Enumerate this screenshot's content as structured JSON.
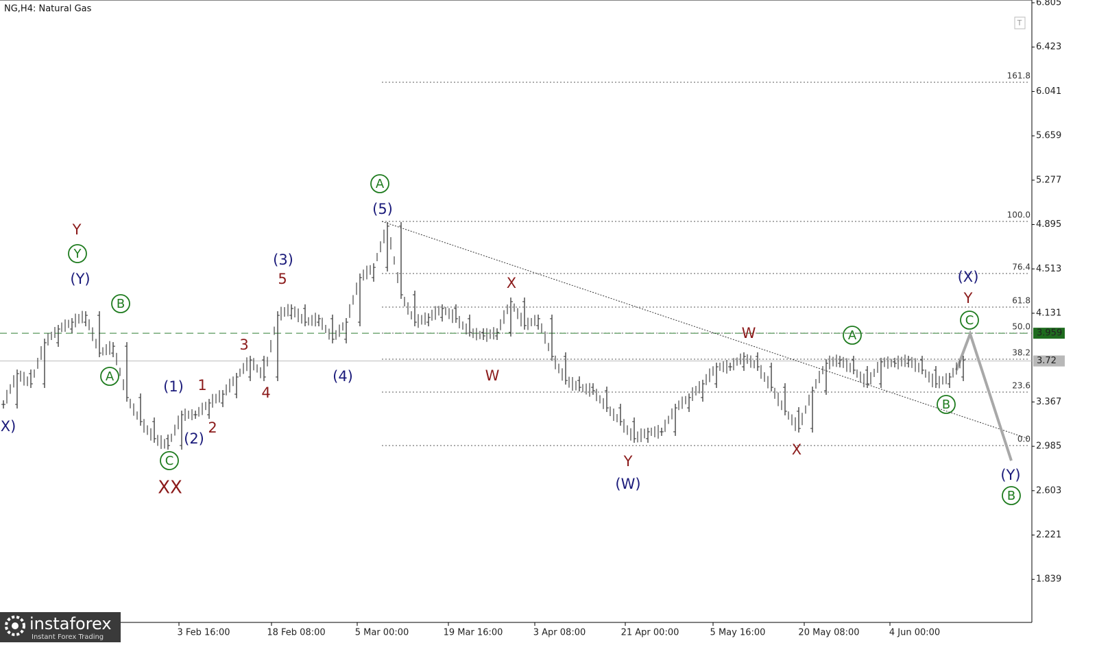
{
  "symbol": "NG,H4:  Natural Gas",
  "price_axis": {
    "ticks": [
      6.805,
      6.423,
      6.041,
      5.659,
      5.277,
      4.895,
      4.513,
      4.131,
      3.367,
      2.985,
      2.603,
      2.221,
      1.839
    ]
  },
  "time_axis": {
    "labels": [
      "3 Feb 16:00",
      "18 Feb 08:00",
      "5 Mar 00:00",
      "19 Mar 16:00",
      "3 Apr 08:00",
      "21 Apr 00:00",
      "5 May 16:00",
      "20 May 08:00",
      "4 Jun 00:00"
    ]
  },
  "badges": [
    {
      "value": 3.959,
      "color": "#1e6b1e"
    },
    {
      "value": 3.72,
      "color": "#b8b8b8"
    }
  ],
  "fib_levels": [
    "161.8",
    "100.0",
    "76.4",
    "61.8",
    "50.0",
    "38.2",
    "23.6",
    "0.0"
  ],
  "price_trace": [
    3.346,
    3.611,
    3.523,
    3.877,
    3.995,
    4.054,
    4.113,
    3.788,
    3.847,
    3.405,
    3.198,
    3.051,
    2.992,
    3.257,
    3.257,
    3.358,
    3.434,
    3.582,
    3.729,
    3.582,
    4.113,
    4.172,
    4.054,
    4.084,
    3.907,
    4.054,
    4.438,
    4.526,
    4.881,
    4.29,
    4.054,
    4.095,
    4.172,
    4.084,
    3.966,
    3.936,
    3.966,
    4.231,
    4.025,
    4.084,
    3.759,
    3.552,
    3.493,
    3.464,
    3.316,
    3.198,
    3.051,
    3.11,
    3.11,
    3.316,
    3.405,
    3.523,
    3.67,
    3.67,
    3.759,
    3.67,
    3.493,
    3.287,
    3.139,
    3.464,
    3.7,
    3.729,
    3.641,
    3.523,
    3.712,
    3.7,
    3.729,
    3.641,
    3.523,
    3.582,
    3.729
  ],
  "wave_labels": [
    {
      "text": "X)",
      "color": "#1a1a7a"
    },
    {
      "text": "Y",
      "color": "#8b1a1a"
    },
    {
      "text": "Y",
      "color": "#1e7b1e",
      "circled": true
    },
    {
      "text": "(Y)",
      "color": "#1a1a7a"
    },
    {
      "text": "B",
      "color": "#1e7b1e",
      "circled": true
    },
    {
      "text": "A",
      "color": "#1e7b1e",
      "circled": true
    },
    {
      "text": "C",
      "color": "#1e7b1e",
      "circled": true
    },
    {
      "text": "XX",
      "color": "#8b1a1a"
    },
    {
      "text": "(1)",
      "color": "#1a1a7a"
    },
    {
      "text": "(2)",
      "color": "#1a1a7a"
    },
    {
      "text": "1",
      "color": "#8b1a1a"
    },
    {
      "text": "2",
      "color": "#8b1a1a"
    },
    {
      "text": "3",
      "color": "#8b1a1a"
    },
    {
      "text": "4",
      "color": "#8b1a1a"
    },
    {
      "text": "5",
      "color": "#8b1a1a"
    },
    {
      "text": "(3)",
      "color": "#1a1a7a"
    },
    {
      "text": "(4)",
      "color": "#1a1a7a"
    },
    {
      "text": "A",
      "color": "#1e7b1e",
      "circled": true
    },
    {
      "text": "(5)",
      "color": "#1a1a7a"
    },
    {
      "text": "X",
      "color": "#8b1a1a"
    },
    {
      "text": "W",
      "color": "#8b1a1a"
    },
    {
      "text": "Y",
      "color": "#8b1a1a"
    },
    {
      "text": "(W)",
      "color": "#1a1a7a"
    },
    {
      "text": "W",
      "color": "#8b1a1a"
    },
    {
      "text": "X",
      "color": "#8b1a1a"
    },
    {
      "text": "A",
      "color": "#1e7b1e",
      "circled": true
    },
    {
      "text": "B",
      "color": "#1e7b1e",
      "circled": true
    },
    {
      "text": "(X)",
      "color": "#1a1a7a"
    },
    {
      "text": "Y",
      "color": "#8b1a1a"
    },
    {
      "text": "C",
      "color": "#1e7b1e",
      "circled": true
    },
    {
      "text": "(Y)",
      "color": "#1a1a7a"
    },
    {
      "text": "B",
      "color": "#1e7b1e",
      "circled": true
    }
  ],
  "watermark": {
    "brand": "instaforex",
    "tagline": "Instant Forex Trading"
  }
}
